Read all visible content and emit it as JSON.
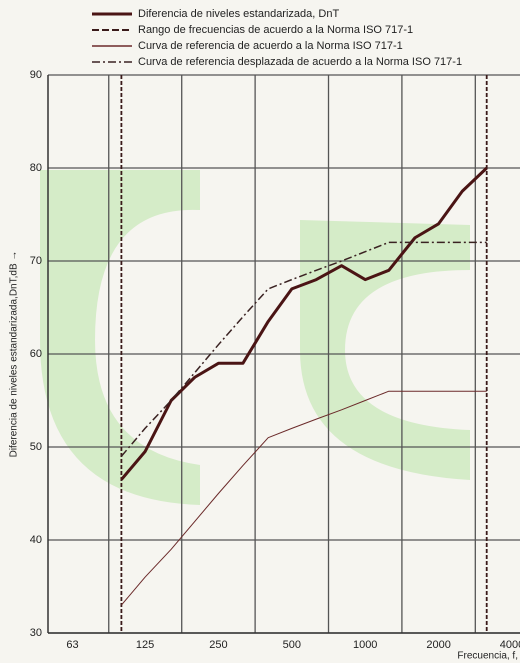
{
  "chart_data": {
    "type": "line",
    "xlabel": "Frecuencia, f,",
    "ylabel": "Diferencia de niveles estandarizada,DnT,dB →",
    "x": [
      100,
      125,
      160,
      200,
      250,
      315,
      400,
      500,
      630,
      800,
      1000,
      1250,
      1600,
      2000,
      2500,
      3150
    ],
    "series": [
      {
        "name": "Diferencia de niveles estandarizada, DnT",
        "color": "#4a1414",
        "style": "solid",
        "width": 3,
        "values": [
          46.5,
          49.5,
          55,
          57.5,
          59,
          59,
          63.5,
          67,
          68,
          69.5,
          68,
          69,
          72.5,
          74,
          77.5,
          80
        ]
      },
      {
        "name": "Curva de referencia de acuerdo a la Norma ISO 717-1",
        "color": "#6b2a2a",
        "style": "solid",
        "width": 1,
        "values": [
          33,
          36,
          39,
          42,
          45,
          48,
          51,
          52,
          53,
          54,
          55,
          56,
          56,
          56,
          56,
          56
        ]
      },
      {
        "name": "Curva de referencia desplazada de acuerdo a la Norma ISO 717-1",
        "color": "#3a2222",
        "style": "dashdot",
        "width": 1.5,
        "values": [
          49,
          52,
          55,
          58,
          61,
          64,
          67,
          68,
          69,
          70,
          71,
          72,
          72,
          72,
          72,
          72
        ]
      }
    ],
    "range": {
      "name": "Rango de frecuencias de acuerdo a la Norma ISO 717-1",
      "color": "#3a1a1a",
      "values": [
        100,
        3150
      ]
    },
    "xlim": [
      50,
      4000
    ],
    "ylim": [
      30,
      90
    ],
    "xticks": [
      63,
      125,
      250,
      500,
      1000,
      2000,
      4000
    ],
    "yticks": [
      30,
      40,
      50,
      60,
      70,
      80,
      90
    ],
    "log_x": true,
    "grid": true
  }
}
